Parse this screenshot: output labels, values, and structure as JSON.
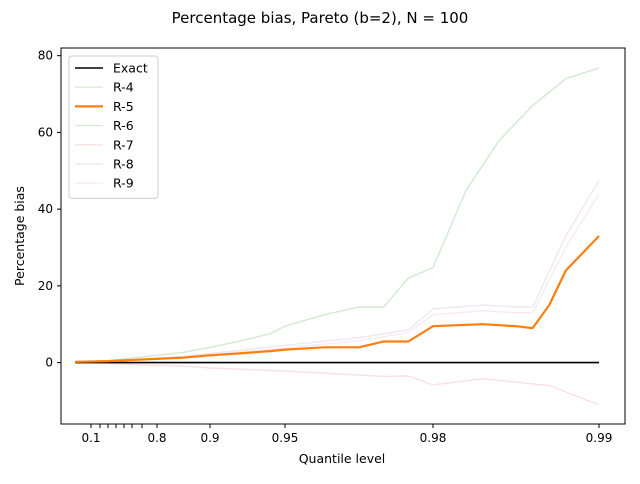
{
  "chart_data": {
    "type": "line",
    "title": "Percentage bias, Pareto (b=2), N = 100",
    "xlabel": "Quantile level",
    "ylabel": "Percentage bias",
    "x_axis_note": "x axis is non-linear (stretched toward q = 0.99); ticks placed at their printed quantile levels",
    "xticks": [
      {
        "value": 0.1,
        "label": "0.1"
      },
      {
        "value": 0.2,
        "label": ""
      },
      {
        "value": 0.3,
        "label": ""
      },
      {
        "value": 0.4,
        "label": ""
      },
      {
        "value": 0.5,
        "label": ""
      },
      {
        "value": 0.6,
        "label": ""
      },
      {
        "value": 0.7,
        "label": ""
      },
      {
        "value": 0.8,
        "label": "0.8"
      },
      {
        "value": 0.9,
        "label": "0.9"
      },
      {
        "value": 0.95,
        "label": "0.95"
      },
      {
        "value": 0.98,
        "label": "0.98"
      },
      {
        "value": 0.99,
        "label": "0.99"
      }
    ],
    "yticks": [
      0,
      20,
      40,
      60,
      80
    ],
    "ylim": [
      -16,
      82
    ],
    "legend_position": "top-left",
    "grid": false,
    "series": [
      {
        "name": "Exact",
        "color": "#000000",
        "opacity": 1,
        "width": 1.6,
        "x": [
          0.05,
          0.99
        ],
        "y": [
          0,
          0
        ]
      },
      {
        "name": "R-4",
        "color": "#2ca02c",
        "opacity": 0.18,
        "width": 1.4,
        "x": [
          0.05,
          0.99
        ],
        "y": [
          0,
          0
        ]
      },
      {
        "name": "R-5",
        "color": "#ff7f0e",
        "opacity": 1,
        "width": 2.2,
        "x": [
          0.05,
          0.3,
          0.7,
          0.85,
          0.9,
          0.92,
          0.94,
          0.95,
          0.958,
          0.965,
          0.97,
          0.975,
          0.98,
          0.983,
          0.985,
          0.986,
          0.987,
          0.988,
          0.99
        ],
        "y": [
          0.2,
          0.4,
          0.8,
          1.3,
          1.9,
          2.4,
          3.0,
          3.4,
          4.0,
          4.0,
          5.5,
          5.5,
          9.5,
          10.0,
          9.5,
          9.0,
          15.0,
          24.0,
          33.0
        ]
      },
      {
        "name": "R-6",
        "color": "#2ca02c",
        "opacity": 0.22,
        "width": 1.4,
        "x": [
          0.05,
          0.3,
          0.7,
          0.85,
          0.9,
          0.92,
          0.94,
          0.95,
          0.958,
          0.965,
          0.97,
          0.975,
          0.98,
          0.982,
          0.984,
          0.986,
          0.988,
          0.99
        ],
        "y": [
          0.2,
          0.5,
          1.5,
          2.7,
          4.0,
          5.6,
          7.5,
          9.5,
          12.5,
          14.5,
          14.5,
          22.0,
          24.8,
          45.0,
          58.0,
          67.0,
          74.0,
          76.8
        ]
      },
      {
        "name": "R-7",
        "color": "#d62728",
        "opacity": 0.14,
        "width": 1.4,
        "x": [
          0.05,
          0.3,
          0.7,
          0.85,
          0.9,
          0.95,
          0.97,
          0.975,
          0.98,
          0.983,
          0.987,
          0.99
        ],
        "y": [
          0.1,
          -0.2,
          -0.6,
          -0.9,
          -1.4,
          -2.2,
          -3.6,
          -3.5,
          -5.8,
          -4.2,
          -6.0,
          -11.0
        ]
      },
      {
        "name": "R-8",
        "color": "#9467bd",
        "opacity": 0.16,
        "width": 1.4,
        "x": [
          0.05,
          0.3,
          0.7,
          0.85,
          0.9,
          0.95,
          0.965,
          0.975,
          0.98,
          0.983,
          0.985,
          0.986,
          0.988,
          0.99
        ],
        "y": [
          0.2,
          0.3,
          0.9,
          1.6,
          2.4,
          4.5,
          6.5,
          8.5,
          14.0,
          15.0,
          14.5,
          14.5,
          33.0,
          47.5
        ]
      },
      {
        "name": "R-9",
        "color": "#e377c2",
        "opacity": 0.16,
        "width": 1.4,
        "x": [
          0.05,
          0.3,
          0.7,
          0.85,
          0.9,
          0.95,
          0.965,
          0.975,
          0.98,
          0.983,
          0.985,
          0.986,
          0.988,
          0.99
        ],
        "y": [
          0.2,
          0.3,
          0.8,
          1.4,
          2.1,
          3.8,
          5.7,
          7.8,
          12.5,
          13.5,
          13.0,
          13.0,
          30.0,
          44.0
        ]
      }
    ]
  }
}
